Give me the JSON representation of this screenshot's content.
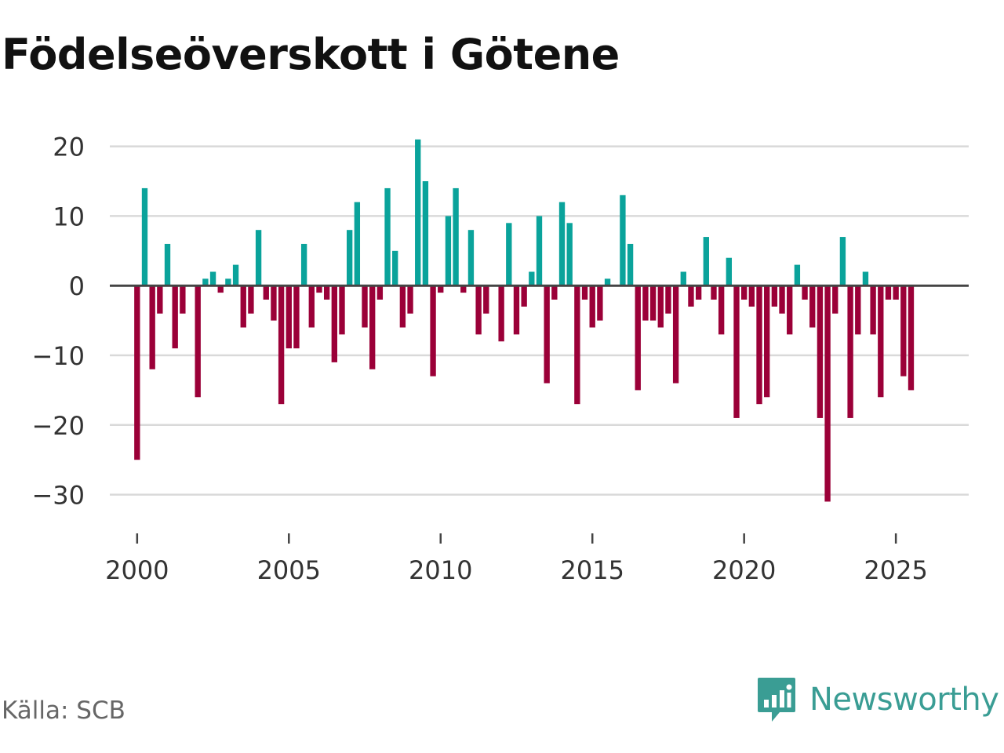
{
  "chart_data": {
    "type": "bar",
    "title": "Födelseöverskott i Götene",
    "xlabel": "",
    "ylabel": "",
    "ylim": [
      -35,
      23
    ],
    "xlim": [
      1999.1,
      2027.4
    ],
    "yticks": [
      20,
      10,
      0,
      -10,
      -20,
      -30
    ],
    "ytick_labels": [
      "20",
      "10",
      "0",
      "−10",
      "−20",
      "−30"
    ],
    "xticks": [
      2000,
      2005,
      2010,
      2015,
      2020,
      2025
    ],
    "xtick_labels": [
      "2000",
      "2005",
      "2010",
      "2015",
      "2020",
      "2025"
    ],
    "grid": true,
    "start_year": 2000,
    "periods_per_year": 4,
    "values": [
      -25,
      14,
      -12,
      -4,
      6,
      -9,
      -4,
      0,
      -16,
      1,
      2,
      -1,
      1,
      3,
      -6,
      -4,
      8,
      -2,
      -5,
      -17,
      -9,
      -9,
      6,
      -6,
      -1,
      -2,
      -11,
      -7,
      8,
      12,
      -6,
      -12,
      -2,
      14,
      5,
      -6,
      -4,
      21,
      15,
      -13,
      -1,
      10,
      14,
      -1,
      8,
      -7,
      -4,
      0,
      -8,
      9,
      -7,
      -3,
      2,
      10,
      -14,
      -2,
      12,
      9,
      -17,
      -2,
      -6,
      -5,
      1,
      0,
      13,
      6,
      -15,
      -5,
      -5,
      -6,
      -4,
      -14,
      2,
      -3,
      -2,
      7,
      -2,
      -7,
      4,
      -19,
      -2,
      -3,
      -17,
      -16,
      -3,
      -4,
      -7,
      3,
      -2,
      -6,
      -19,
      -31,
      -4,
      7,
      -19,
      -7,
      2,
      -7,
      -16,
      -2,
      -2,
      -13,
      -15
    ],
    "positive_color": "#0aa39b",
    "negative_color": "#9b0038"
  },
  "footer": {
    "source": "Källa: SCB",
    "brand": "Newsworthy"
  }
}
